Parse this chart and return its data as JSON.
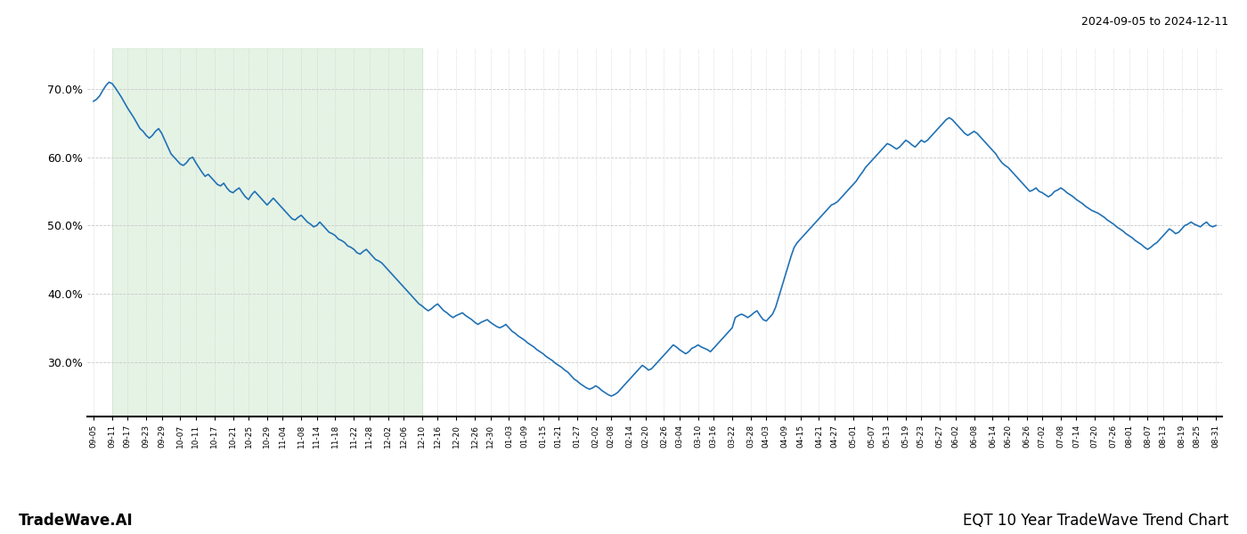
{
  "title_top_right": "2024-09-05 to 2024-12-11",
  "title_bottom_left": "TradeWave.AI",
  "title_bottom_right": "EQT 10 Year TradeWave Trend Chart",
  "line_color": "#2171b5",
  "line_width": 1.2,
  "shade_color": "#d4ecd4",
  "shade_alpha": 0.6,
  "background_color": "#ffffff",
  "grid_color": "#c8c8c8",
  "ylim": [
    22,
    76
  ],
  "yticks": [
    30.0,
    40.0,
    50.0,
    60.0,
    70.0
  ],
  "ytick_labels": [
    "30.0%",
    "40.0%",
    "50.0%",
    "60.0%",
    "70.0%"
  ],
  "xtick_labels": [
    "09-05",
    "09-11",
    "09-17",
    "09-23",
    "09-29",
    "10-07",
    "10-11",
    "10-17",
    "10-21",
    "10-25",
    "10-29",
    "11-04",
    "11-08",
    "11-14",
    "11-18",
    "11-22",
    "11-28",
    "12-02",
    "12-06",
    "12-10",
    "12-16",
    "12-20",
    "12-26",
    "12-30",
    "01-03",
    "01-09",
    "01-15",
    "01-21",
    "01-27",
    "02-02",
    "02-08",
    "02-14",
    "02-20",
    "02-26",
    "03-04",
    "03-10",
    "03-16",
    "03-22",
    "03-28",
    "04-03",
    "04-09",
    "04-15",
    "04-21",
    "04-27",
    "05-01",
    "05-07",
    "05-13",
    "05-19",
    "05-23",
    "05-27",
    "06-02",
    "06-08",
    "06-14",
    "06-20",
    "06-26",
    "07-02",
    "07-08",
    "07-14",
    "07-20",
    "07-26",
    "08-01",
    "08-07",
    "08-13",
    "08-19",
    "08-25",
    "08-31"
  ],
  "shade_start_label": "09-11",
  "shade_end_label": "12-10",
  "values": [
    68.2,
    68.5,
    69.0,
    69.8,
    70.5,
    71.0,
    70.8,
    70.2,
    69.5,
    68.8,
    68.0,
    67.2,
    66.5,
    65.8,
    65.0,
    64.2,
    63.8,
    63.2,
    62.8,
    63.2,
    63.8,
    64.2,
    63.5,
    62.5,
    61.5,
    60.5,
    60.0,
    59.5,
    59.0,
    58.8,
    59.2,
    59.8,
    60.0,
    59.2,
    58.5,
    57.8,
    57.2,
    57.5,
    57.0,
    56.5,
    56.0,
    55.8,
    56.2,
    55.5,
    55.0,
    54.8,
    55.2,
    55.5,
    54.8,
    54.2,
    53.8,
    54.5,
    55.0,
    54.5,
    54.0,
    53.5,
    53.0,
    53.5,
    54.0,
    53.5,
    53.0,
    52.5,
    52.0,
    51.5,
    51.0,
    50.8,
    51.2,
    51.5,
    51.0,
    50.5,
    50.2,
    49.8,
    50.0,
    50.5,
    50.0,
    49.5,
    49.0,
    48.8,
    48.5,
    48.0,
    47.8,
    47.5,
    47.0,
    46.8,
    46.5,
    46.0,
    45.8,
    46.2,
    46.5,
    46.0,
    45.5,
    45.0,
    44.8,
    44.5,
    44.0,
    43.5,
    43.0,
    42.5,
    42.0,
    41.5,
    41.0,
    40.5,
    40.0,
    39.5,
    39.0,
    38.5,
    38.2,
    37.8,
    37.5,
    37.8,
    38.2,
    38.5,
    38.0,
    37.5,
    37.2,
    36.8,
    36.5,
    36.8,
    37.0,
    37.2,
    36.8,
    36.5,
    36.2,
    35.8,
    35.5,
    35.8,
    36.0,
    36.2,
    35.8,
    35.5,
    35.2,
    35.0,
    35.2,
    35.5,
    35.0,
    34.5,
    34.2,
    33.8,
    33.5,
    33.2,
    32.8,
    32.5,
    32.2,
    31.8,
    31.5,
    31.2,
    30.8,
    30.5,
    30.2,
    29.8,
    29.5,
    29.2,
    28.8,
    28.5,
    28.0,
    27.5,
    27.2,
    26.8,
    26.5,
    26.2,
    26.0,
    26.2,
    26.5,
    26.2,
    25.8,
    25.5,
    25.2,
    25.0,
    25.2,
    25.5,
    26.0,
    26.5,
    27.0,
    27.5,
    28.0,
    28.5,
    29.0,
    29.5,
    29.2,
    28.8,
    29.0,
    29.5,
    30.0,
    30.5,
    31.0,
    31.5,
    32.0,
    32.5,
    32.2,
    31.8,
    31.5,
    31.2,
    31.5,
    32.0,
    32.2,
    32.5,
    32.2,
    32.0,
    31.8,
    31.5,
    32.0,
    32.5,
    33.0,
    33.5,
    34.0,
    34.5,
    35.0,
    36.5,
    36.8,
    37.0,
    36.8,
    36.5,
    36.8,
    37.2,
    37.5,
    36.8,
    36.2,
    36.0,
    36.5,
    37.0,
    38.0,
    39.5,
    41.0,
    42.5,
    44.0,
    45.5,
    46.8,
    47.5,
    48.0,
    48.5,
    49.0,
    49.5,
    50.0,
    50.5,
    51.0,
    51.5,
    52.0,
    52.5,
    53.0,
    53.2,
    53.5,
    54.0,
    54.5,
    55.0,
    55.5,
    56.0,
    56.5,
    57.2,
    57.8,
    58.5,
    59.0,
    59.5,
    60.0,
    60.5,
    61.0,
    61.5,
    62.0,
    61.8,
    61.5,
    61.2,
    61.5,
    62.0,
    62.5,
    62.2,
    61.8,
    61.5,
    62.0,
    62.5,
    62.2,
    62.5,
    63.0,
    63.5,
    64.0,
    64.5,
    65.0,
    65.5,
    65.8,
    65.5,
    65.0,
    64.5,
    64.0,
    63.5,
    63.2,
    63.5,
    63.8,
    63.5,
    63.0,
    62.5,
    62.0,
    61.5,
    61.0,
    60.5,
    59.8,
    59.2,
    58.8,
    58.5,
    58.0,
    57.5,
    57.0,
    56.5,
    56.0,
    55.5,
    55.0,
    55.2,
    55.5,
    55.0,
    54.8,
    54.5,
    54.2,
    54.5,
    55.0,
    55.2,
    55.5,
    55.2,
    54.8,
    54.5,
    54.2,
    53.8,
    53.5,
    53.2,
    52.8,
    52.5,
    52.2,
    52.0,
    51.8,
    51.5,
    51.2,
    50.8,
    50.5,
    50.2,
    49.8,
    49.5,
    49.2,
    48.8,
    48.5,
    48.2,
    47.8,
    47.5,
    47.2,
    46.8,
    46.5,
    46.8,
    47.2,
    47.5,
    48.0,
    48.5,
    49.0,
    49.5,
    49.2,
    48.8,
    49.0,
    49.5,
    50.0,
    50.2,
    50.5,
    50.2,
    50.0,
    49.8,
    50.2,
    50.5,
    50.0,
    49.8,
    50.0
  ]
}
